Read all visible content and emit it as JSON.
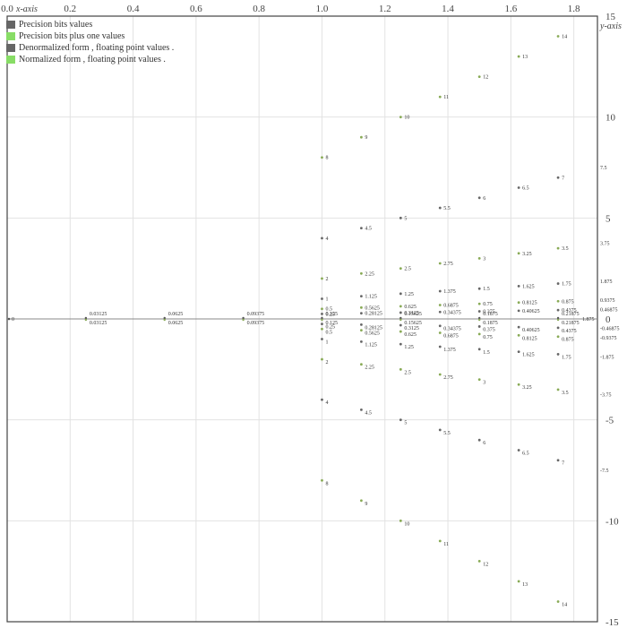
{
  "chart_data": {
    "type": "scatter",
    "xlabel": "x-axis",
    "ylabel": "y-axis",
    "xlim": [
      0,
      1.875
    ],
    "ylim": [
      -15,
      15
    ],
    "x_ticks": [
      "0.0",
      "0.2",
      "0.4",
      "0.6",
      "0.8",
      "1.0",
      "1.2",
      "1.4",
      "1.6",
      "1.8"
    ],
    "x_tick_values": [
      0,
      0.2,
      0.4,
      0.6,
      0.8,
      1.0,
      1.2,
      1.4,
      1.6,
      1.8
    ],
    "y_ticks": [
      "15",
      "10",
      "5",
      "0",
      "-5",
      "-10",
      "-15"
    ],
    "y_tick_values": [
      15,
      10,
      5,
      0,
      -5,
      -10,
      -15
    ],
    "grid": true,
    "legend_position": "top-left",
    "legend": [
      {
        "name": "Precision bits values",
        "color": "#666666"
      },
      {
        "name": "Precision bits plus one values",
        "color": "#88dd66"
      },
      {
        "name": "Denormalized form , floating point values .",
        "color": "#666666"
      },
      {
        "name": "Normalized form , floating point values .",
        "color": "#88dd66"
      }
    ],
    "right_axis_labels": [
      "7.5",
      "3.75",
      "1.875",
      "0.9375",
      "0.46875",
      "-0.46875",
      "-0.9375",
      "-1.875",
      "-3.75",
      "-7.5"
    ],
    "zero_label": "0",
    "x_edge_label": "1.875",
    "denormalized_values": [
      0.03125,
      0.0625,
      0.09375,
      0.125,
      0.15625,
      0.1875,
      0.21875
    ],
    "denormalized_labels": [
      "0.03125",
      "0.0625",
      "0.09375",
      "0.125",
      "0.15625",
      "0.1875",
      "0.21875"
    ],
    "normalized_mantissas": [
      1.0,
      1.125,
      1.25,
      1.375,
      1.5,
      1.625,
      1.75
    ],
    "normalized_values": [
      [
        8,
        9,
        10,
        11,
        12,
        13,
        14
      ],
      [
        4,
        4.5,
        5,
        5.5,
        6,
        6.5,
        7
      ],
      [
        2,
        2.25,
        2.5,
        2.75,
        3,
        3.25,
        3.5
      ],
      [
        1,
        1.125,
        1.25,
        1.375,
        1.5,
        1.625,
        1.75
      ],
      [
        0.5,
        0.5625,
        0.625,
        0.6875,
        0.75,
        0.8125,
        0.875
      ],
      [
        0.25,
        0.28125,
        0.3125,
        0.34375,
        0.375,
        0.40625,
        0.4375
      ]
    ],
    "normalized_labels": [
      [
        "8",
        "9",
        "10",
        "11",
        "12",
        "13",
        "14"
      ],
      [
        "4",
        "4.5",
        "5",
        "5.5",
        "6",
        "6.5",
        "7"
      ],
      [
        "2",
        "2.25",
        "2.5",
        "2.75",
        "3",
        "3.25",
        "3.5"
      ],
      [
        "1",
        "1.125",
        "1.25",
        "1.375",
        "1.5",
        "1.625",
        "1.75"
      ],
      [
        "0.5",
        "0.5625",
        "0.625",
        "0.6875",
        "0.75",
        "0.8125",
        "0.875"
      ],
      [
        "0.25",
        "0.28125",
        "0.3125",
        "0.34375",
        "0.375",
        "0.40625",
        "0.4375"
      ]
    ]
  }
}
